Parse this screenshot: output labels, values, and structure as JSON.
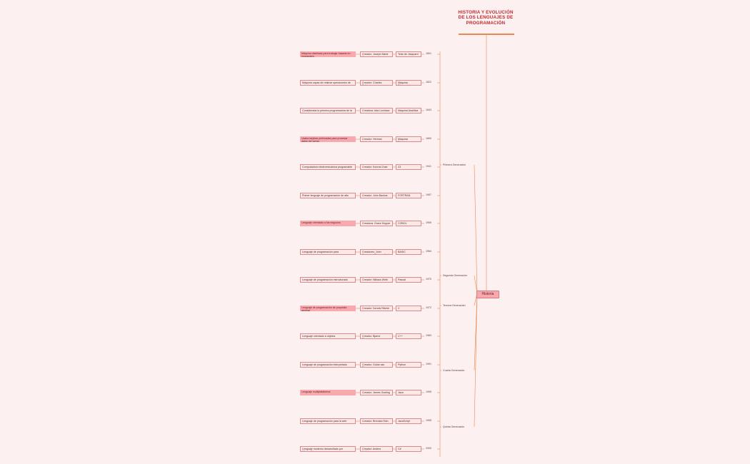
{
  "title": "HISTORIA Y EVOLUCIÓN DE LOS LENGUAJES DE PROGRAMACIÓN",
  "hub": "Historia",
  "colors": {
    "background": "#fdf0f0",
    "highlight": "#f9a8ad",
    "accent": "#c1272d",
    "line": "#e8894d"
  },
  "era_labels": [
    "Primera Generación",
    "Segunda Generación",
    "Tercera Generación",
    "Cuarta Generación",
    "Quinta Generación"
  ],
  "rows": [
    {
      "desc": "Máquina diseñada para trabajar basada en engranajes",
      "creator": "Creador: Joseph Marie Jacquard",
      "name": "Telar de Jacquard",
      "year": "1801"
    },
    {
      "desc": "Máquina capaz de realizar operaciones de cálculo.",
      "creator": "Creador: Charles Babbage",
      "name": "Máquina Diferencial",
      "year": "1822"
    },
    {
      "desc": "Considerada la primera programadora de la historia",
      "creator": "Creadora: Ada Lovelace",
      "name": "Máquina Analítica",
      "year": "1843"
    },
    {
      "desc": "Usaba tarjetas perforadas para procesar datos del censo",
      "creator": "Creador: Herman Hollerith",
      "name": "Máquina Tabuladora",
      "year": "1890"
    },
    {
      "desc": "Computadora electromecánica programable",
      "creator": "Creador: Konrad Zuse",
      "name": "Z3",
      "year": "1941"
    },
    {
      "desc": "Primer lenguaje de programación de alto nivel",
      "creator": "Creador: John Backus",
      "name": "FORTRAN",
      "year": "1957"
    },
    {
      "desc": "Lenguaje orientado a los negocios",
      "creator": "Creadora: Grace Hopper",
      "name": "COBOL",
      "year": "1959"
    },
    {
      "desc": "Lenguaje de programación para principiantes",
      "creator": "Creadores: John Kemeny y Thomas Kurtz",
      "name": "BASIC",
      "year": "1964"
    },
    {
      "desc": "Lenguaje de programación estructurado",
      "creator": "Creador: Niklaus Wirth",
      "name": "Pascal",
      "year": "1970"
    },
    {
      "desc": "Lenguaje de programación de propósito general",
      "creator": "Creador: Dennis Ritchie",
      "name": "C",
      "year": "1972"
    },
    {
      "desc": "Lenguaje orientado a objetos",
      "creator": "Creador: Bjarne Stroustrup",
      "name": "C++",
      "year": "1983"
    },
    {
      "desc": "Lenguaje de programación interpretado",
      "creator": "Creador: Guido van Rossum",
      "name": "Python",
      "year": "1991"
    },
    {
      "desc": "Lenguaje multiplataforma",
      "creator": "Creador: James Gosling",
      "name": "Java",
      "year": "1995"
    },
    {
      "desc": "Lenguaje de programación para la web",
      "creator": "Creador: Brendan Eich",
      "name": "JavaScript",
      "year": "1995"
    },
    {
      "desc": "Lenguaje moderno desarrollado por Microsoft",
      "creator": "Creador: Anders Hejlsberg",
      "name": "C#",
      "year": "2000"
    }
  ]
}
